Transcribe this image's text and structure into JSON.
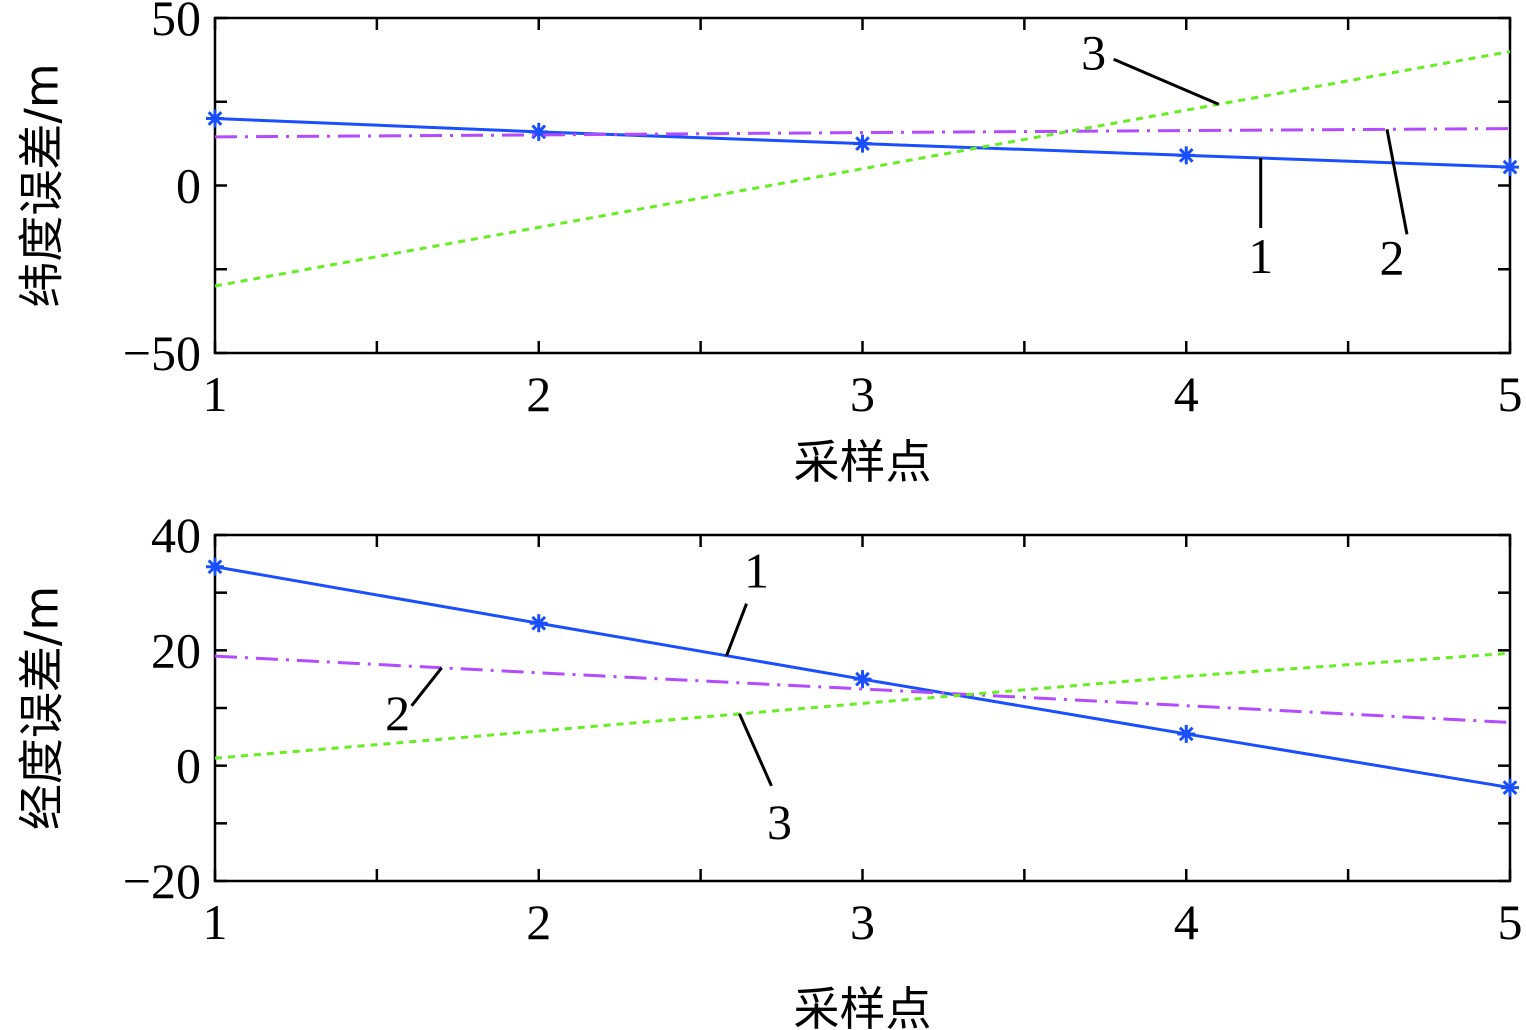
{
  "chart_data": [
    {
      "type": "line",
      "xlabel": "采样点",
      "ylabel": "纬度误差/m",
      "xlim": [
        1,
        5
      ],
      "ylim": [
        -50,
        50
      ],
      "xticks": [
        "1",
        "2",
        "3",
        "4",
        "5"
      ],
      "yticks": [
        "−50",
        "0",
        "50"
      ],
      "x": [
        1,
        2,
        3,
        4,
        5
      ],
      "series": [
        {
          "name": "1",
          "color": "#1a4fff",
          "style": "solid",
          "marker": "asterisk",
          "values": [
            20,
            16,
            12.5,
            9,
            5.5
          ]
        },
        {
          "name": "2",
          "color": "#b44bff",
          "style": "dash-dot",
          "values": [
            14.5,
            15.1,
            15.8,
            16.4,
            17
          ]
        },
        {
          "name": "3",
          "color": "#66ee22",
          "style": "dotted",
          "values": [
            -30,
            -12.5,
            5,
            22.5,
            40
          ]
        }
      ],
      "callouts": [
        {
          "label": "1",
          "series": 0,
          "x": 4.23
        },
        {
          "label": "2",
          "series": 1,
          "x": 4.62
        },
        {
          "label": "3",
          "series": 2,
          "x": 4.1
        }
      ]
    },
    {
      "type": "line",
      "xlabel": "采样点",
      "ylabel": "经度误差/m",
      "xlim": [
        1,
        5
      ],
      "ylim": [
        -20,
        40
      ],
      "xticks": [
        "1",
        "2",
        "3",
        "4",
        "5"
      ],
      "yticks": [
        "−20",
        "0",
        "20",
        "40"
      ],
      "x": [
        1,
        2,
        3,
        4,
        5
      ],
      "series": [
        {
          "name": "1",
          "color": "#1a4fff",
          "style": "solid",
          "marker": "asterisk",
          "values": [
            34.5,
            24.7,
            15,
            5.5,
            -3.8
          ]
        },
        {
          "name": "2",
          "color": "#b44bff",
          "style": "dash-dot",
          "values": [
            19,
            16.1,
            13.3,
            10.4,
            7.5
          ]
        },
        {
          "name": "3",
          "color": "#66ee22",
          "style": "dotted",
          "values": [
            1.3,
            6,
            10.8,
            15.5,
            19.5
          ]
        }
      ],
      "callouts": [
        {
          "label": "1",
          "series": 0,
          "x": 2.58
        },
        {
          "label": "2",
          "series": 1,
          "x": 1.7
        },
        {
          "label": "3",
          "series": 2,
          "x": 2.62
        }
      ]
    }
  ]
}
